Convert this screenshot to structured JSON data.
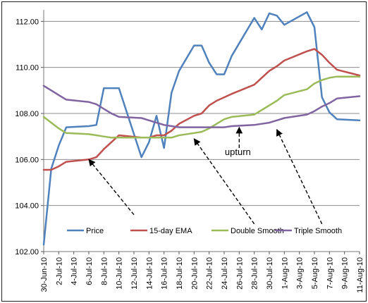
{
  "chart_data": {
    "type": "line",
    "title": "",
    "xlabel": "",
    "ylabel": "",
    "ylim": [
      102,
      112.5
    ],
    "yticks": [
      "102.00",
      "104.00",
      "106.00",
      "108.00",
      "110.00",
      "112.00"
    ],
    "grid": "horizontal",
    "legend_position": "bottom-inside",
    "x_tick_labels": [
      "30-Jun-10",
      "2-Jul-10",
      "4-Jul-10",
      "6-Jul-10",
      "8-Jul-10",
      "10-Jul-10",
      "12-Jul-10",
      "14-Jul-10",
      "16-Jul-10",
      "18-Jul-10",
      "20-Jul-10",
      "22-Jul-10",
      "24-Jul-10",
      "26-Jul-10",
      "28-Jul-10",
      "30-Jul-10",
      "1-Aug-10",
      "3-Aug-10",
      "5-Aug-10",
      "7-Aug-10",
      "9-Aug-10",
      "11-Aug-10"
    ],
    "x": [
      "2010-06-30",
      "2010-07-01",
      "2010-07-02",
      "2010-07-03",
      "2010-07-06",
      "2010-07-07",
      "2010-07-08",
      "2010-07-09",
      "2010-07-10",
      "2010-07-13",
      "2010-07-14",
      "2010-07-15",
      "2010-07-16",
      "2010-07-17",
      "2010-07-18",
      "2010-07-20",
      "2010-07-21",
      "2010-07-22",
      "2010-07-23",
      "2010-07-24",
      "2010-07-25",
      "2010-07-28",
      "2010-07-29",
      "2010-07-30",
      "2010-07-31",
      "2010-08-01",
      "2010-08-04",
      "2010-08-05",
      "2010-08-06",
      "2010-08-07",
      "2010-08-08",
      "2010-08-11"
    ],
    "series": [
      {
        "name": "Price",
        "color": "#4f81bd",
        "values": [
          102.3,
          105.6,
          106.6,
          107.4,
          107.45,
          107.5,
          109.1,
          109.1,
          109.1,
          106.1,
          106.75,
          107.9,
          106.5,
          108.9,
          109.85,
          110.95,
          110.95,
          110.2,
          109.7,
          109.7,
          110.5,
          112.15,
          111.65,
          112.35,
          112.25,
          111.85,
          112.4,
          111.75,
          108.7,
          108.05,
          107.75,
          107.7
        ]
      },
      {
        "name": "15-day EMA",
        "color": "#c0504d",
        "values": [
          105.55,
          105.55,
          105.7,
          105.9,
          106.0,
          106.1,
          106.45,
          106.75,
          107.05,
          106.95,
          106.95,
          107.05,
          107.05,
          107.25,
          107.55,
          107.9,
          108.0,
          108.35,
          108.55,
          108.7,
          108.85,
          109.25,
          109.55,
          109.85,
          110.05,
          110.3,
          110.7,
          110.8,
          110.55,
          110.2,
          109.9,
          109.65
        ]
      },
      {
        "name": "Double Smooth",
        "color": "#9bbb59",
        "values": [
          107.85,
          107.6,
          107.35,
          107.15,
          107.1,
          107.05,
          107.0,
          106.95,
          106.95,
          106.95,
          106.95,
          106.95,
          106.95,
          106.95,
          107.05,
          107.15,
          107.2,
          107.35,
          107.55,
          107.75,
          107.85,
          107.95,
          108.15,
          108.35,
          108.55,
          108.8,
          109.05,
          109.3,
          109.45,
          109.55,
          109.6,
          109.6
        ]
      },
      {
        "name": "Triple Smooth",
        "color": "#8064a2",
        "values": [
          109.2,
          109.0,
          108.8,
          108.6,
          108.5,
          108.4,
          108.2,
          108.0,
          107.85,
          107.8,
          107.7,
          107.6,
          107.5,
          107.45,
          107.4,
          107.4,
          107.4,
          107.4,
          107.4,
          107.4,
          107.45,
          107.5,
          107.55,
          107.6,
          107.7,
          107.8,
          107.95,
          108.1,
          108.3,
          108.45,
          108.65,
          108.75
        ]
      }
    ],
    "annotations": [
      {
        "label": "",
        "from_x": "2010-07-12",
        "from_y": 103.6,
        "to_x": "2010-07-06",
        "to_y": 106.0
      },
      {
        "label": "",
        "from_x": "2010-07-28",
        "from_y": 103.2,
        "to_x": "2010-07-20",
        "to_y": 106.9
      },
      {
        "label": "upturn",
        "from_x": "2010-07-26",
        "from_y": 106.5,
        "to_x": "2010-07-26",
        "to_y": 107.4
      },
      {
        "label": "",
        "from_x": "2010-08-06",
        "from_y": 103.2,
        "to_x": "2010-07-31",
        "to_y": 107.3
      }
    ]
  }
}
